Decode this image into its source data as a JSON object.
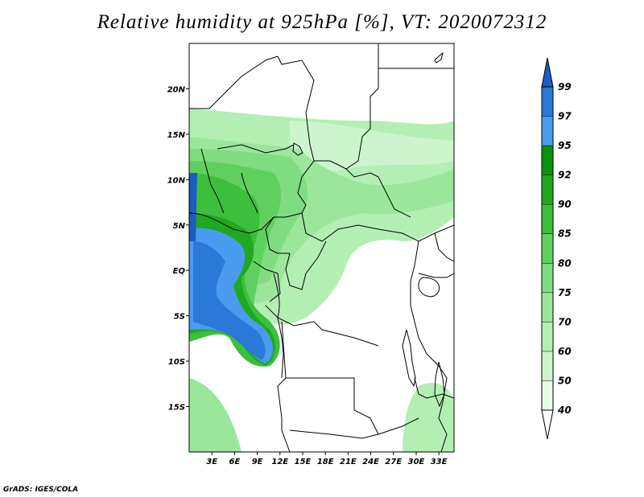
{
  "title": "Relative humidity at 925hPa [%], VT: 2020072312",
  "credit": "GrADS: IGES/COLA",
  "map": {
    "lon_range": [
      0,
      35
    ],
    "lat_range": [
      -20,
      25
    ],
    "lat_ticks": [
      {
        "value": 20,
        "label": "20N"
      },
      {
        "value": 15,
        "label": "15N"
      },
      {
        "value": 10,
        "label": "10N"
      },
      {
        "value": 5,
        "label": "5N"
      },
      {
        "value": 0,
        "label": "EQ"
      },
      {
        "value": -5,
        "label": "5S"
      },
      {
        "value": -10,
        "label": "10S"
      },
      {
        "value": -15,
        "label": "15S"
      }
    ],
    "lon_ticks": [
      {
        "value": 3,
        "label": "3E"
      },
      {
        "value": 6,
        "label": "6E"
      },
      {
        "value": 9,
        "label": "9E"
      },
      {
        "value": 12,
        "label": "12E"
      },
      {
        "value": 15,
        "label": "15E"
      },
      {
        "value": 18,
        "label": "18E"
      },
      {
        "value": 21,
        "label": "21E"
      },
      {
        "value": 24,
        "label": "24E"
      },
      {
        "value": 27,
        "label": "27E"
      },
      {
        "value": 30,
        "label": "30E"
      },
      {
        "value": 33,
        "label": "33E"
      }
    ]
  },
  "colorbar": {
    "levels": [
      "40",
      "50",
      "60",
      "70",
      "75",
      "80",
      "85",
      "90",
      "92",
      "95",
      "97",
      "99"
    ],
    "colors": [
      "#ffffff",
      "#e6fae6",
      "#cdf5cd",
      "#b3efb3",
      "#9be69b",
      "#80dc80",
      "#5fd05f",
      "#3cbf3c",
      "#21a821",
      "#0a920a",
      "#4a9cf0",
      "#2a78d8",
      "#1a5ec0"
    ]
  },
  "colors": {
    "frame": "#000000",
    "boundaries": "#000000",
    "background": "#ffffff"
  }
}
